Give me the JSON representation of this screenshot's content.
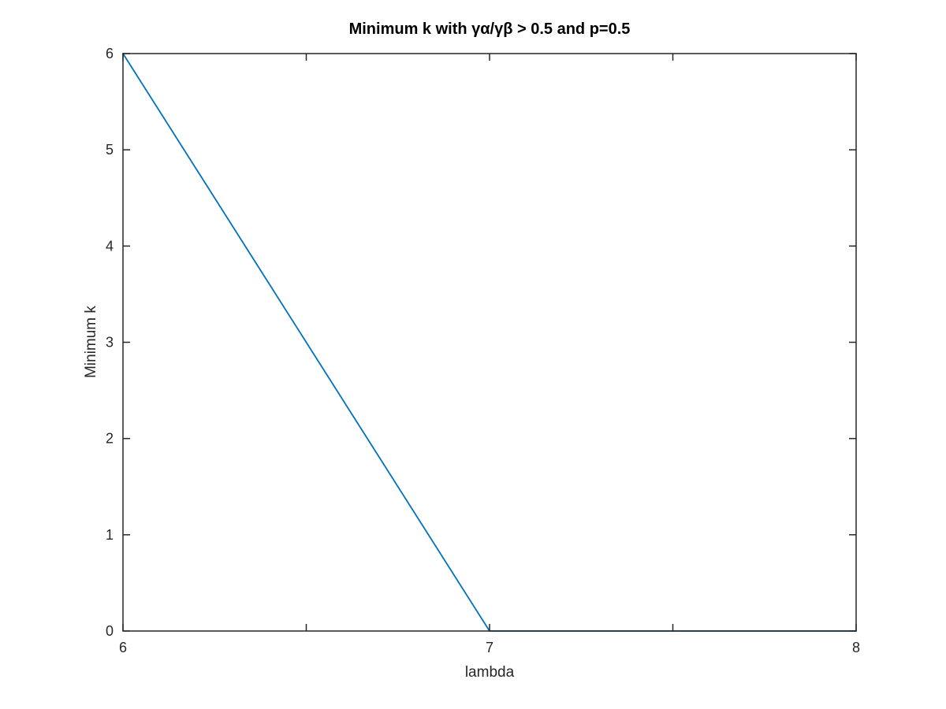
{
  "chart_data": {
    "type": "line",
    "title": "Minimum k with γα/γβ > 0.5 and p=0.5",
    "xlabel": "lambda",
    "ylabel": "Minimum k",
    "xlim": [
      6,
      8
    ],
    "ylim": [
      0,
      6
    ],
    "xticks": [
      6,
      6.5,
      7,
      7.5,
      8
    ],
    "xtick_labels": [
      "6",
      "",
      "7",
      "",
      "8"
    ],
    "yticks": [
      0,
      1,
      2,
      3,
      4,
      5,
      6
    ],
    "ytick_labels": [
      "0",
      "1",
      "2",
      "3",
      "4",
      "5",
      "6"
    ],
    "grid": false,
    "legend": "none",
    "series": [
      {
        "color": "#0072BD",
        "x": [
          6,
          7,
          8
        ],
        "y": [
          6,
          0,
          0
        ]
      }
    ]
  }
}
